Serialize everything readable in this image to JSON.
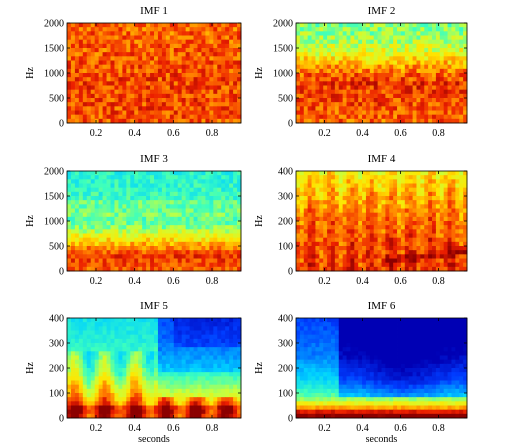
{
  "chart_data": [
    {
      "type": "heatmap",
      "title": "IMF 1",
      "xlabel": "",
      "ylabel": "Hz",
      "xlim": [
        0.05,
        0.95
      ],
      "ylim": [
        0,
        2000
      ],
      "xticks": [
        "0.2",
        "0.4",
        "0.6",
        "0.8"
      ],
      "yticks": [
        "0",
        "500",
        "1000",
        "1500",
        "2000"
      ],
      "colormap": "jet-like (0 = blue, 1 = dark red)",
      "intensity_profile": {
        "freq": [
          0,
          500,
          1000,
          1500,
          2000
        ],
        "level": [
          0.84,
          0.86,
          0.85,
          0.83,
          0.82
        ]
      }
    },
    {
      "type": "heatmap",
      "title": "IMF 2",
      "xlabel": "",
      "ylabel": "Hz",
      "xlim": [
        0.05,
        0.95
      ],
      "ylim": [
        0,
        2000
      ],
      "xticks": [
        "0.2",
        "0.4",
        "0.6",
        "0.8"
      ],
      "yticks": [
        "0",
        "500",
        "1000",
        "1500",
        "2000"
      ],
      "colormap": "jet-like (0 = blue, 1 = dark red)",
      "intensity_profile": {
        "freq": [
          0,
          400,
          800,
          1100,
          1400,
          1700,
          2000
        ],
        "level": [
          0.82,
          0.85,
          0.88,
          0.78,
          0.62,
          0.55,
          0.5
        ]
      }
    },
    {
      "type": "heatmap",
      "title": "IMF 3",
      "xlabel": "",
      "ylabel": "Hz",
      "xlim": [
        0.05,
        0.95
      ],
      "ylim": [
        0,
        2000
      ],
      "xticks": [
        "0.2",
        "0.4",
        "0.6",
        "0.8"
      ],
      "yticks": [
        "0",
        "500",
        "1000",
        "1500",
        "2000"
      ],
      "colormap": "jet-like (0 = blue, 1 = dark red)",
      "intensity_profile": {
        "freq": [
          0,
          300,
          600,
          900,
          1200,
          1600,
          2000
        ],
        "level": [
          0.82,
          0.88,
          0.7,
          0.5,
          0.45,
          0.42,
          0.4
        ]
      }
    },
    {
      "type": "heatmap",
      "title": "IMF 4",
      "xlabel": "",
      "ylabel": "Hz",
      "xlim": [
        0.05,
        0.95
      ],
      "ylim": [
        0,
        400
      ],
      "xticks": [
        "0.2",
        "0.4",
        "0.6",
        "0.8"
      ],
      "yticks": [
        "0",
        "100",
        "200",
        "300",
        "400"
      ],
      "colormap": "jet-like (0 = blue, 1 = dark red)",
      "intensity_profile": {
        "freq": [
          0,
          100,
          200,
          300,
          400
        ],
        "level": [
          0.88,
          0.86,
          0.82,
          0.74,
          0.66
        ]
      },
      "ridge": {
        "x": [
          0.5,
          0.7,
          0.95
        ],
        "hz": [
          40,
          55,
          80
        ]
      }
    },
    {
      "type": "heatmap",
      "title": "IMF 5",
      "xlabel": "seconds",
      "ylabel": "Hz",
      "xlim": [
        0.05,
        0.95
      ],
      "ylim": [
        0,
        400
      ],
      "xticks": [
        "0.2",
        "0.4",
        "0.6",
        "0.8"
      ],
      "yticks": [
        "0",
        "100",
        "200",
        "300",
        "400"
      ],
      "colormap": "jet-like (0 = blue, 1 = dark red)",
      "intensity_profile": {
        "freq": [
          0,
          50,
          100,
          200,
          300,
          400
        ],
        "level": [
          0.92,
          0.82,
          0.7,
          0.5,
          0.4,
          0.35
        ]
      },
      "ridge": {
        "x": [
          0.05,
          0.95
        ],
        "hz": [
          35,
          35
        ]
      }
    },
    {
      "type": "heatmap",
      "title": "IMF 6",
      "xlabel": "seconds",
      "ylabel": "Hz",
      "xlim": [
        0.05,
        0.95
      ],
      "ylim": [
        0,
        400
      ],
      "xticks": [
        "0.2",
        "0.4",
        "0.6",
        "0.8"
      ],
      "yticks": [
        "0",
        "100",
        "200",
        "300",
        "400"
      ],
      "colormap": "jet-like (0 = blue, 1 = dark red)",
      "intensity_profile": {
        "freq": [
          0,
          30,
          80,
          150,
          250,
          400
        ],
        "level": [
          0.95,
          0.82,
          0.5,
          0.32,
          0.2,
          0.12
        ]
      },
      "ridge": {
        "x": [
          0.05,
          0.95
        ],
        "hz": [
          15,
          15
        ]
      }
    }
  ]
}
